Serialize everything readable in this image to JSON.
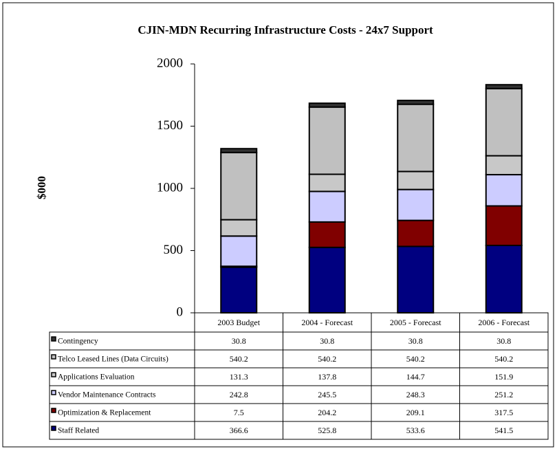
{
  "chart_data": {
    "type": "stacked-bar",
    "title": "CJIN-MDN Recurring Infrastructure Costs - 24x7 Support",
    "y_label": "$000",
    "categories": [
      "2003 Budget",
      "2004 - Forecast",
      "2005 - Forecast",
      "2006 - Forecast"
    ],
    "series": [
      {
        "name": "Contingency",
        "color": "#333333",
        "values": [
          30.8,
          30.8,
          30.8,
          30.8
        ]
      },
      {
        "name": "Telco Leased Lines (Data Circuits)",
        "color": "#c0c0c0",
        "values": [
          540.2,
          540.2,
          540.2,
          540.2
        ]
      },
      {
        "name": "Applications Evaluation",
        "color": "#c8c8c8",
        "values": [
          131.3,
          137.8,
          144.7,
          151.9
        ]
      },
      {
        "name": "Vendor Maintenance Contracts",
        "color": "#ccccff",
        "values": [
          242.8,
          245.5,
          248.3,
          251.2
        ]
      },
      {
        "name": "Optimization & Replacement",
        "color": "#800000",
        "values": [
          7.5,
          204.2,
          209.1,
          317.5
        ]
      },
      {
        "name": "Staff Related",
        "color": "#000080",
        "values": [
          366.6,
          525.8,
          533.6,
          541.5
        ]
      }
    ],
    "ylim": [
      0,
      2000
    ],
    "yticks": [
      0,
      500,
      1000,
      1500,
      2000
    ]
  }
}
